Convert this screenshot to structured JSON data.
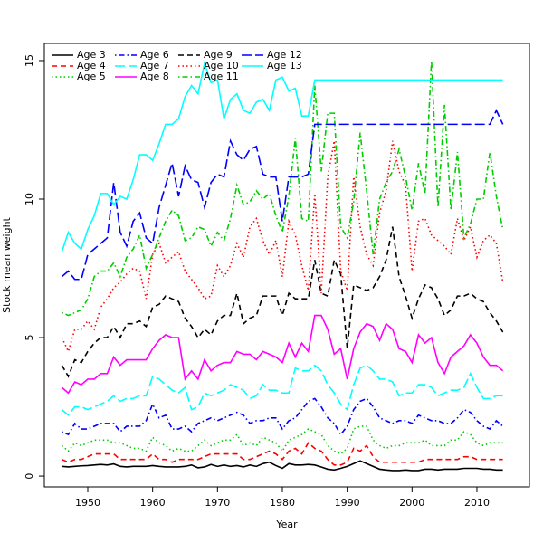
{
  "chart_data": {
    "type": "line",
    "x_label": "Year",
    "y_label": "Stock mean weight",
    "xlim": [
      1943.3,
      2018.1
    ],
    "ylim": [
      -0.39,
      15.62
    ],
    "xticks": [
      1950,
      1960,
      1970,
      1980,
      1990,
      2000,
      2010
    ],
    "yticks": [
      0,
      5,
      10,
      15
    ],
    "legend": "top-left",
    "x": [
      1946,
      1947,
      1948,
      1949,
      1950,
      1951,
      1952,
      1953,
      1954,
      1955,
      1956,
      1957,
      1958,
      1959,
      1960,
      1961,
      1962,
      1963,
      1964,
      1965,
      1966,
      1967,
      1968,
      1969,
      1970,
      1971,
      1972,
      1973,
      1974,
      1975,
      1976,
      1977,
      1978,
      1979,
      1980,
      1981,
      1982,
      1983,
      1984,
      1985,
      1986,
      1987,
      1988,
      1989,
      1990,
      1991,
      1992,
      1993,
      1994,
      1995,
      1996,
      1997,
      1998,
      1999,
      2000,
      2001,
      2002,
      2003,
      2004,
      2005,
      2006,
      2007,
      2008,
      2009,
      2010,
      2011,
      2012,
      2013,
      2014
    ],
    "series": [
      {
        "name": "Age 3",
        "color": "#000000",
        "linestyle": "solid",
        "values": [
          0.35,
          0.33,
          0.35,
          0.37,
          0.38,
          0.4,
          0.42,
          0.4,
          0.44,
          0.35,
          0.33,
          0.35,
          0.35,
          0.35,
          0.38,
          0.35,
          0.33,
          0.33,
          0.33,
          0.35,
          0.4,
          0.3,
          0.33,
          0.42,
          0.35,
          0.4,
          0.35,
          0.38,
          0.33,
          0.4,
          0.35,
          0.45,
          0.5,
          0.38,
          0.28,
          0.45,
          0.4,
          0.4,
          0.42,
          0.4,
          0.33,
          0.25,
          0.22,
          0.28,
          0.35,
          0.45,
          0.55,
          0.45,
          0.35,
          0.25,
          0.22,
          0.2,
          0.2,
          0.22,
          0.2,
          0.2,
          0.25,
          0.25,
          0.22,
          0.25,
          0.25,
          0.25,
          0.28,
          0.28,
          0.28,
          0.25,
          0.25,
          0.22,
          0.22
        ]
      },
      {
        "name": "Age 4",
        "color": "#ff0000",
        "linestyle": "dashed",
        "values": [
          0.6,
          0.5,
          0.6,
          0.6,
          0.7,
          0.8,
          0.8,
          0.8,
          0.8,
          0.6,
          0.6,
          0.6,
          0.6,
          0.6,
          0.8,
          0.6,
          0.6,
          0.5,
          0.6,
          0.6,
          0.6,
          0.6,
          0.7,
          0.8,
          0.8,
          0.8,
          0.8,
          0.8,
          0.6,
          0.6,
          0.7,
          0.8,
          0.9,
          0.8,
          0.6,
          0.9,
          1.0,
          0.8,
          1.2,
          1.0,
          0.9,
          0.6,
          0.4,
          0.4,
          0.5,
          1.0,
          0.9,
          1.1,
          0.7,
          0.5,
          0.5,
          0.5,
          0.5,
          0.5,
          0.5,
          0.5,
          0.6,
          0.6,
          0.6,
          0.6,
          0.6,
          0.6,
          0.7,
          0.7,
          0.6,
          0.6,
          0.6,
          0.6,
          0.6
        ]
      },
      {
        "name": "Age 5",
        "color": "#00cd00",
        "linestyle": "dotted",
        "values": [
          1.1,
          0.9,
          1.2,
          1.1,
          1.2,
          1.3,
          1.3,
          1.3,
          1.2,
          1.2,
          1.1,
          1.0,
          1.0,
          0.9,
          1.4,
          1.2,
          1.1,
          0.9,
          1.0,
          0.9,
          0.9,
          1.1,
          1.3,
          1.1,
          1.2,
          1.3,
          1.3,
          1.5,
          1.1,
          1.2,
          1.1,
          1.4,
          1.3,
          1.2,
          0.9,
          1.3,
          1.4,
          1.5,
          1.7,
          1.6,
          1.5,
          1.1,
          0.9,
          0.8,
          1.0,
          1.7,
          1.8,
          1.8,
          1.3,
          1.1,
          1.0,
          1.1,
          1.1,
          1.2,
          1.2,
          1.2,
          1.3,
          1.1,
          1.1,
          1.1,
          1.3,
          1.3,
          1.6,
          1.5,
          1.2,
          1.1,
          1.2,
          1.2,
          1.2
        ]
      },
      {
        "name": "Age 6",
        "color": "#0000ff",
        "linestyle": "dashdot",
        "values": [
          1.6,
          1.5,
          1.9,
          1.7,
          1.7,
          1.8,
          1.9,
          1.9,
          1.9,
          1.6,
          1.8,
          1.8,
          1.8,
          2.0,
          2.6,
          2.1,
          2.2,
          1.7,
          1.7,
          1.8,
          1.6,
          1.9,
          2.0,
          2.1,
          2.0,
          2.1,
          2.2,
          2.3,
          2.2,
          1.9,
          2.0,
          2.0,
          2.1,
          2.1,
          1.7,
          2.0,
          2.1,
          2.4,
          2.7,
          2.8,
          2.5,
          2.1,
          1.9,
          1.5,
          1.8,
          2.4,
          2.7,
          2.8,
          2.5,
          2.1,
          2.0,
          1.9,
          2.0,
          2.0,
          1.9,
          2.2,
          2.1,
          2.0,
          2.0,
          1.9,
          1.9,
          2.1,
          2.4,
          2.3,
          2.0,
          1.8,
          1.7,
          2.0,
          1.8
        ]
      },
      {
        "name": "Age 7",
        "color": "#00ffff",
        "linestyle": "longdash",
        "values": [
          2.4,
          2.2,
          2.5,
          2.5,
          2.4,
          2.5,
          2.6,
          2.7,
          2.9,
          2.7,
          2.8,
          2.8,
          2.9,
          2.9,
          3.6,
          3.5,
          3.3,
          3.1,
          3.0,
          3.2,
          2.4,
          2.5,
          3.0,
          2.9,
          3.0,
          3.1,
          3.3,
          3.2,
          3.1,
          2.8,
          2.9,
          3.3,
          3.1,
          3.1,
          3.0,
          3.0,
          3.9,
          3.8,
          3.8,
          4.0,
          3.8,
          3.3,
          3.0,
          2.6,
          2.4,
          3.3,
          3.9,
          4.0,
          3.8,
          3.5,
          3.5,
          3.4,
          2.9,
          3.0,
          3.0,
          3.3,
          3.3,
          3.2,
          2.9,
          3.0,
          3.1,
          3.1,
          3.2,
          3.7,
          3.2,
          2.8,
          2.8,
          2.9,
          2.9
        ]
      },
      {
        "name": "Age 8",
        "color": "#ff00ff",
        "linestyle": "solid",
        "values": [
          3.2,
          3.0,
          3.4,
          3.3,
          3.5,
          3.5,
          3.7,
          3.7,
          4.3,
          4.0,
          4.2,
          4.2,
          4.2,
          4.2,
          4.6,
          4.9,
          5.1,
          5.0,
          5.0,
          3.5,
          3.8,
          3.5,
          4.2,
          3.8,
          4.0,
          4.1,
          4.1,
          4.5,
          4.4,
          4.4,
          4.2,
          4.5,
          4.4,
          4.3,
          4.1,
          4.8,
          4.3,
          4.8,
          4.5,
          5.8,
          5.8,
          5.3,
          4.4,
          4.6,
          3.5,
          4.6,
          5.2,
          5.5,
          5.4,
          4.9,
          5.5,
          5.3,
          4.6,
          4.5,
          4.1,
          5.1,
          4.8,
          5.0,
          4.1,
          3.7,
          4.3,
          4.5,
          4.7,
          5.1,
          4.8,
          4.3,
          4.0,
          4.0,
          3.8
        ]
      },
      {
        "name": "Age 9",
        "color": "#000000",
        "linestyle": "dashed",
        "values": [
          4.0,
          3.6,
          4.2,
          4.1,
          4.5,
          4.8,
          5.0,
          5.0,
          5.4,
          5.0,
          5.5,
          5.5,
          5.6,
          5.4,
          6.1,
          6.2,
          6.5,
          6.4,
          6.3,
          5.7,
          5.4,
          5.0,
          5.3,
          5.1,
          5.6,
          5.8,
          5.8,
          6.6,
          5.5,
          5.7,
          5.8,
          6.5,
          6.5,
          6.5,
          5.8,
          6.6,
          6.4,
          6.4,
          6.4,
          7.8,
          6.6,
          6.5,
          7.8,
          7.3,
          4.6,
          6.9,
          6.8,
          6.7,
          6.8,
          7.2,
          7.8,
          9.0,
          7.2,
          6.5,
          5.7,
          6.4,
          6.9,
          6.8,
          6.4,
          5.8,
          6.0,
          6.5,
          6.5,
          6.6,
          6.4,
          6.3,
          5.9,
          5.6,
          5.2
        ]
      },
      {
        "name": "Age 10",
        "color": "#ff0000",
        "linestyle": "dotted",
        "values": [
          5.0,
          4.5,
          5.3,
          5.3,
          5.6,
          5.3,
          6.1,
          6.4,
          6.8,
          7.0,
          7.3,
          7.5,
          7.4,
          6.4,
          8.0,
          8.4,
          7.7,
          7.9,
          8.1,
          7.4,
          7.1,
          6.8,
          6.4,
          6.5,
          7.6,
          7.2,
          7.6,
          8.4,
          7.9,
          9.0,
          9.3,
          8.5,
          8.0,
          8.5,
          7.2,
          9.2,
          8.7,
          7.6,
          6.7,
          10.2,
          6.6,
          10.8,
          12.1,
          7.4,
          6.7,
          10.8,
          9.0,
          8.0,
          7.6,
          9.5,
          10.3,
          12.1,
          11.0,
          10.5,
          7.4,
          9.2,
          9.3,
          8.7,
          8.5,
          8.3,
          8.0,
          9.3,
          8.5,
          9.0,
          7.9,
          8.5,
          8.7,
          8.4,
          7.0
        ]
      },
      {
        "name": "Age 11",
        "color": "#00cd00",
        "linestyle": "dashdot",
        "values": [
          5.9,
          5.8,
          5.9,
          6.0,
          6.4,
          7.2,
          7.4,
          7.4,
          7.7,
          7.2,
          7.9,
          8.2,
          8.7,
          7.5,
          8.0,
          8.6,
          9.2,
          9.6,
          9.4,
          8.5,
          8.6,
          9.0,
          8.9,
          8.3,
          8.8,
          8.5,
          9.3,
          10.5,
          9.8,
          9.9,
          10.3,
          10.0,
          10.2,
          9.4,
          8.8,
          10.1,
          12.2,
          9.3,
          9.2,
          14.1,
          11.0,
          13.1,
          13.1,
          9.0,
          8.6,
          9.9,
          12.4,
          10.3,
          8.0,
          10.0,
          10.6,
          11.0,
          11.8,
          10.8,
          9.6,
          11.3,
          10.2,
          15.0,
          9.7,
          13.4,
          9.6,
          11.7,
          8.6,
          9.1,
          10.0,
          10.0,
          11.7,
          10.1,
          8.9
        ]
      },
      {
        "name": "Age 12",
        "color": "#0000ff",
        "linestyle": "longdash",
        "values": [
          7.2,
          7.4,
          7.1,
          7.1,
          8.0,
          8.2,
          8.4,
          8.6,
          10.6,
          8.8,
          8.3,
          9.2,
          9.5,
          8.6,
          8.4,
          9.7,
          10.5,
          11.3,
          10.1,
          11.2,
          10.7,
          10.6,
          9.7,
          10.6,
          10.9,
          10.8,
          12.1,
          11.6,
          11.4,
          11.8,
          11.9,
          10.9,
          10.8,
          10.8,
          9.2,
          10.8,
          10.8,
          10.8,
          10.9,
          12.7,
          12.7,
          12.7,
          12.7,
          12.7,
          12.7,
          12.7,
          12.7,
          12.7,
          12.7,
          12.7,
          12.7,
          12.7,
          12.7,
          12.7,
          12.7,
          12.7,
          12.7,
          12.7,
          12.7,
          12.7,
          12.7,
          12.7,
          12.7,
          12.7,
          12.7,
          12.7,
          12.7,
          13.2,
          12.7
        ]
      },
      {
        "name": "Age 13",
        "color": "#00ffff",
        "linestyle": "solid",
        "values": [
          8.1,
          8.8,
          8.4,
          8.2,
          8.9,
          9.4,
          10.2,
          10.2,
          9.8,
          10.1,
          10.0,
          10.7,
          11.6,
          11.6,
          11.4,
          12.0,
          12.7,
          12.7,
          12.9,
          13.7,
          14.1,
          13.8,
          14.9,
          14.2,
          14.3,
          12.9,
          13.6,
          13.8,
          13.2,
          13.1,
          13.5,
          13.6,
          13.2,
          14.3,
          14.4,
          13.9,
          14.0,
          13.0,
          13.0,
          14.3,
          14.3,
          14.3,
          14.3,
          14.3,
          14.3,
          14.3,
          14.3,
          14.3,
          14.3,
          14.3,
          14.3,
          14.3,
          14.3,
          14.3,
          14.3,
          14.3,
          14.3,
          14.3,
          14.3,
          14.3,
          14.3,
          14.3,
          14.3,
          14.3,
          14.3,
          14.3,
          14.3,
          14.3,
          14.3
        ]
      }
    ]
  }
}
